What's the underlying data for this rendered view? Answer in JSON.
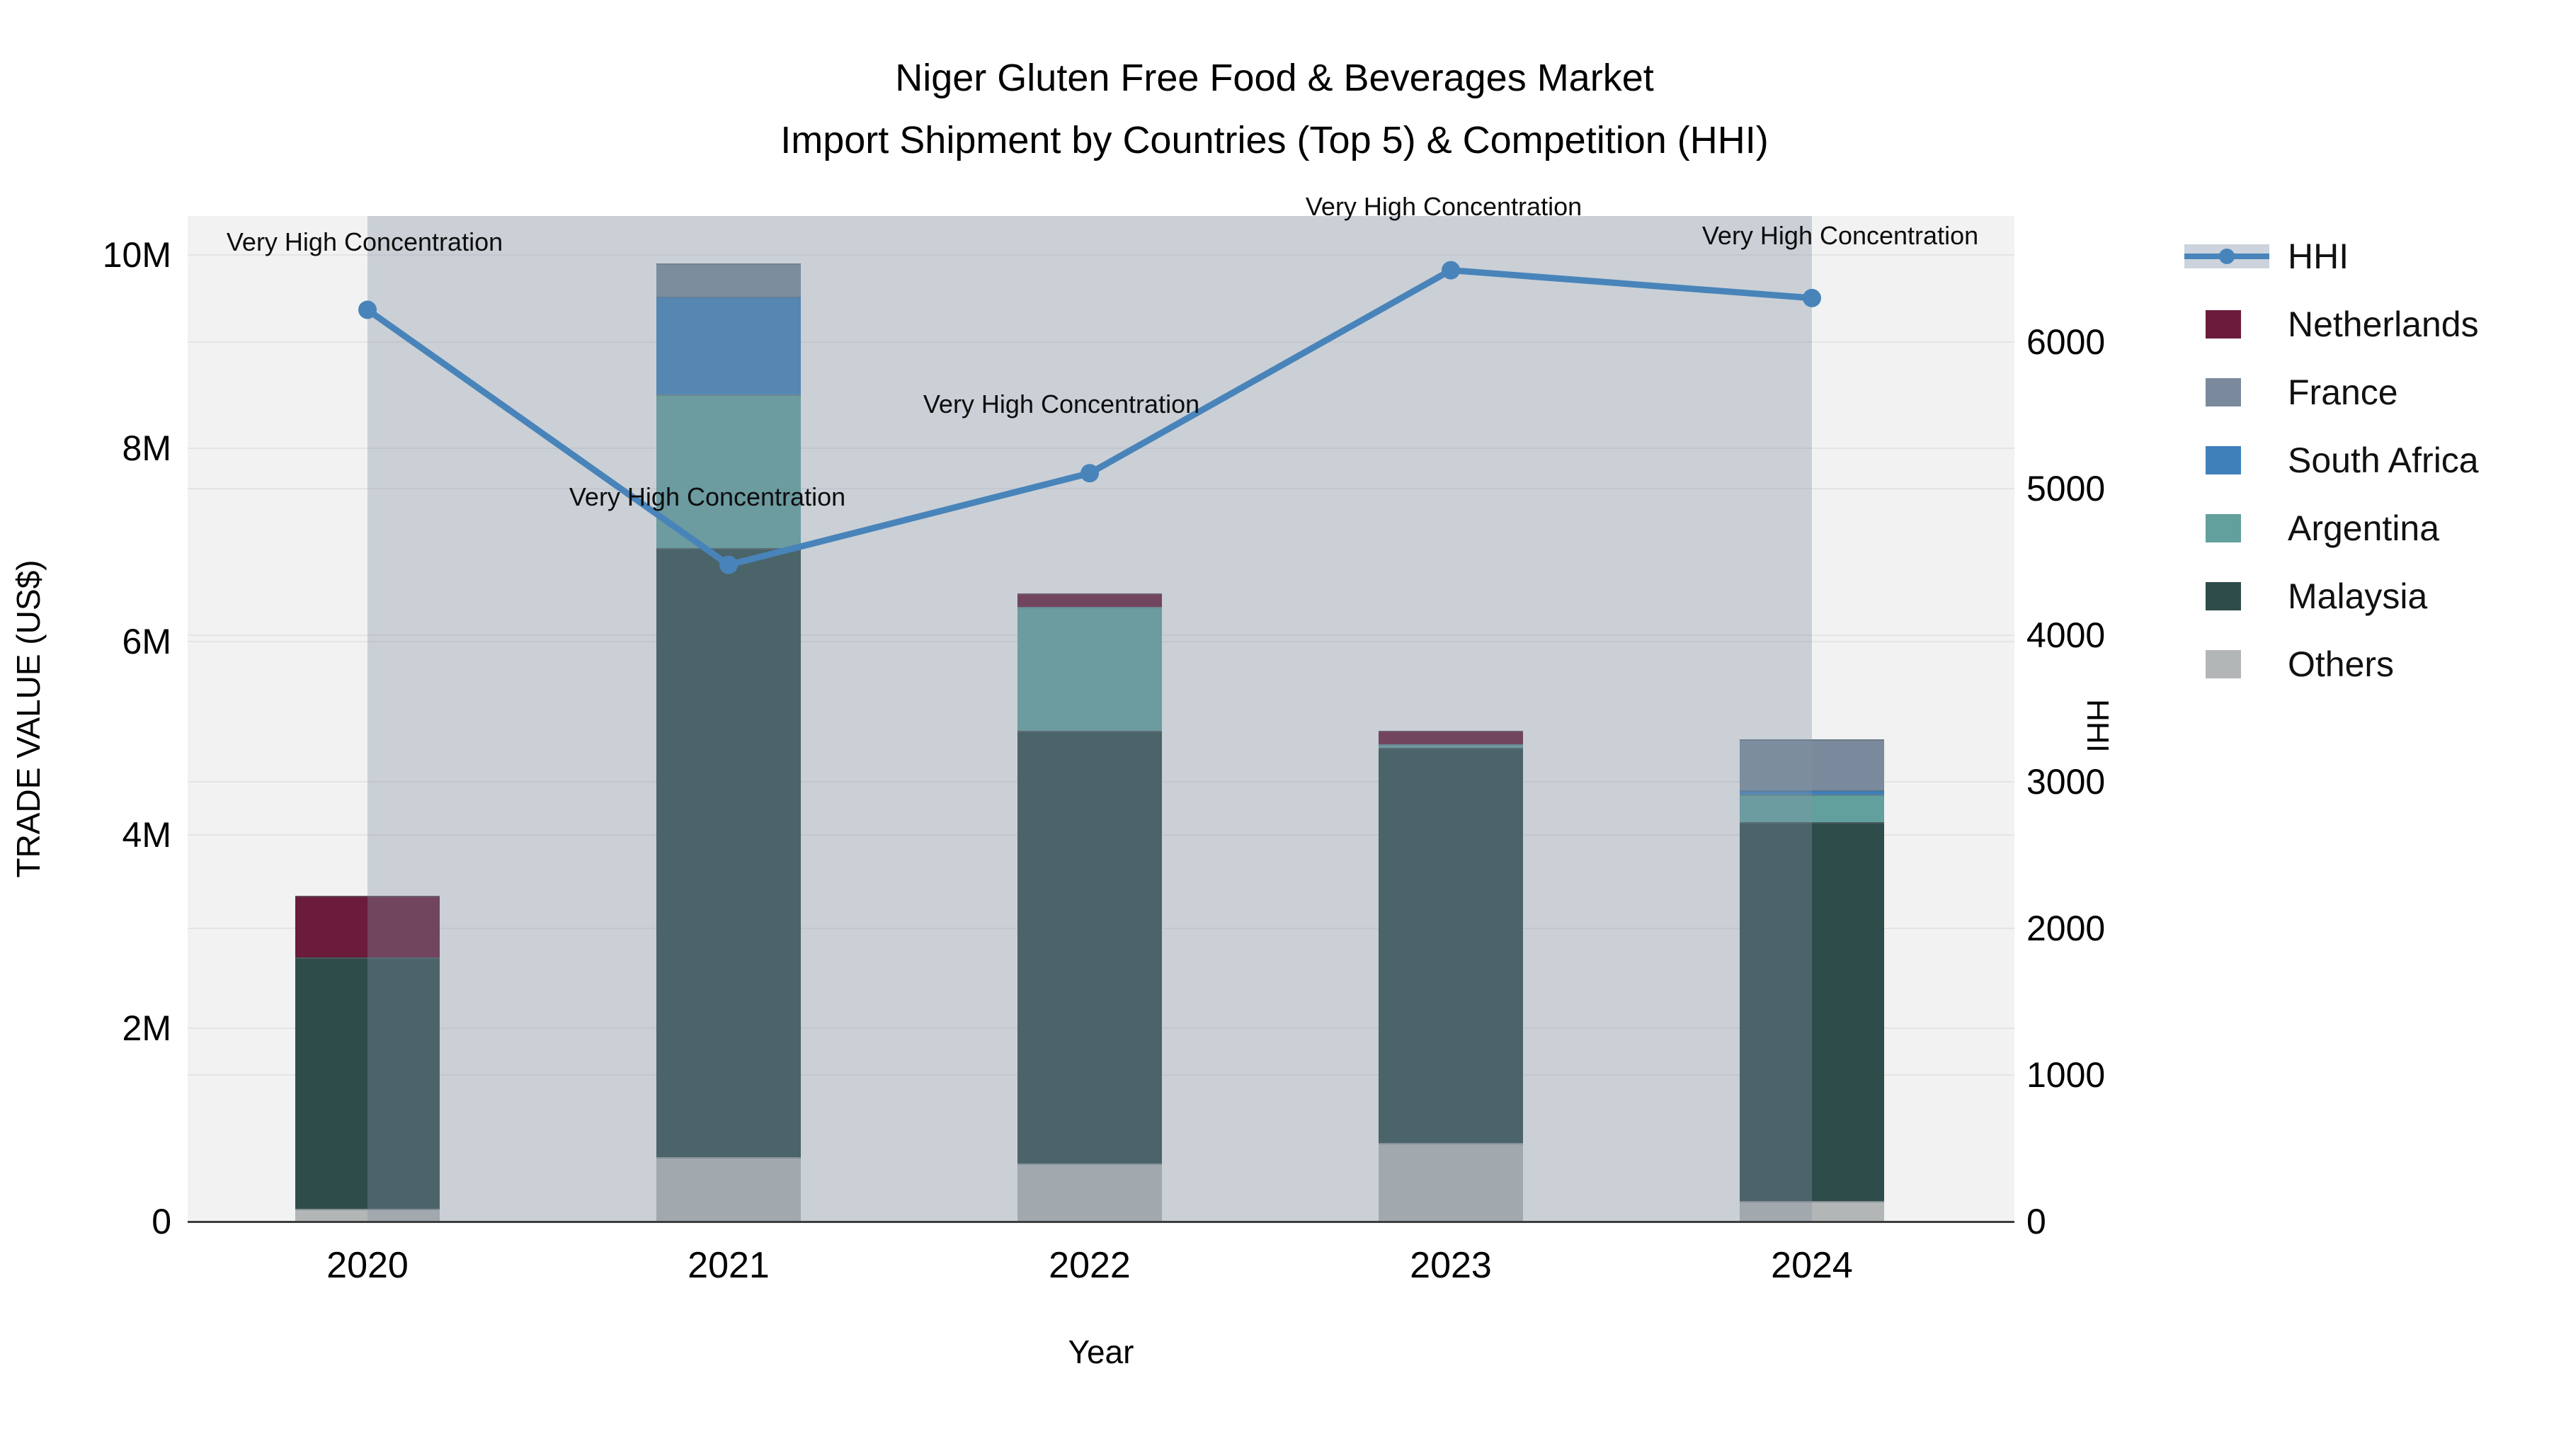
{
  "title": {
    "line1": "Niger Gluten Free Food & Beverages Market",
    "line2": "Import Shipment by Countries (Top 5) & Competition (HHI)"
  },
  "axes": {
    "left": {
      "title": "TRADE VALUE (US$)",
      "ticks": [
        {
          "label": "0",
          "value": 0
        },
        {
          "label": "2M",
          "value": 2
        },
        {
          "label": "4M",
          "value": 4
        },
        {
          "label": "6M",
          "value": 6
        },
        {
          "label": "8M",
          "value": 8
        },
        {
          "label": "10M",
          "value": 10
        }
      ]
    },
    "right": {
      "title": "HHI",
      "ticks": [
        {
          "label": "0",
          "value": 0
        },
        {
          "label": "1000",
          "value": 1000
        },
        {
          "label": "2000",
          "value": 2000
        },
        {
          "label": "3000",
          "value": 3000
        },
        {
          "label": "4000",
          "value": 4000
        },
        {
          "label": "5000",
          "value": 5000
        },
        {
          "label": "6000",
          "value": 6000
        }
      ]
    },
    "x": {
      "title": "Year"
    }
  },
  "legend_order": [
    "HHI",
    "Netherlands",
    "France",
    "South Africa",
    "Argentina",
    "Malaysia",
    "Others"
  ],
  "colors": {
    "hhi_line": "#4884ba",
    "hhi_band": "rgba(130,146,163,0.35)",
    "legend_band_swatch": "#ccd3dc",
    "netherlands": "#6a1c3a",
    "france": "#7a8a9c",
    "south_africa": "#4080ba",
    "argentina": "#62a09e",
    "malaysia": "#2e4c4a",
    "others": "#b2b6b6",
    "plot_background": "#f2f2f2",
    "gridline": "#e4e4e4",
    "axis_line": "#3d3d3d"
  },
  "chart_data": {
    "type": "bar+line",
    "title": "Niger Gluten Free Food & Beverages Market — Import Shipment by Countries (Top 5) & Competition (HHI)",
    "categories": [
      "2020",
      "2021",
      "2022",
      "2023",
      "2024"
    ],
    "bar_unit": "USD millions",
    "bar_stack_order_bottom_to_top": [
      "Others",
      "Malaysia",
      "Argentina",
      "South Africa",
      "France",
      "Netherlands"
    ],
    "series": [
      {
        "name": "Netherlands",
        "color": "#6a1c3a",
        "values": [
          0.64,
          0,
          0.14,
          0.14,
          0
        ]
      },
      {
        "name": "France",
        "color": "#7a8a9c",
        "values": [
          0,
          0.34,
          0,
          0,
          0.53
        ]
      },
      {
        "name": "South Africa",
        "color": "#4080ba",
        "values": [
          0,
          1.01,
          0,
          0,
          0.04
        ]
      },
      {
        "name": "Argentina",
        "color": "#62a09e",
        "values": [
          0,
          1.59,
          1.28,
          0.04,
          0.29
        ]
      },
      {
        "name": "Malaysia",
        "color": "#2e4c4a",
        "values": [
          2.6,
          6.3,
          4.48,
          4.09,
          3.92
        ]
      },
      {
        "name": "Others",
        "color": "#b2b6b6",
        "values": [
          0.13,
          0.67,
          0.6,
          0.81,
          0.21
        ]
      }
    ],
    "bar_totals": [
      3.37,
      9.91,
      6.5,
      5.08,
      4.99
    ],
    "line_series": {
      "name": "HHI",
      "color": "#4884ba",
      "values": [
        6220,
        4480,
        5105,
        6490,
        6300
      ],
      "axis": "right"
    },
    "annotations": [
      {
        "text": "Very High Concentration",
        "category": "2020"
      },
      {
        "text": "Very High Concentration",
        "category": "2021"
      },
      {
        "text": "Very High Concentration",
        "category": "2022"
      },
      {
        "text": "Very High Concentration",
        "category": "2023"
      },
      {
        "text": "Very High Concentration",
        "category": "2024"
      }
    ],
    "xlabel": "Year",
    "ylabel_left": "TRADE VALUE (US$)",
    "ylabel_right": "HHI",
    "ylim_left": [
      0,
      10.4
    ],
    "ylim_right": [
      0,
      6860
    ],
    "grid": true,
    "legend_position": "right"
  }
}
